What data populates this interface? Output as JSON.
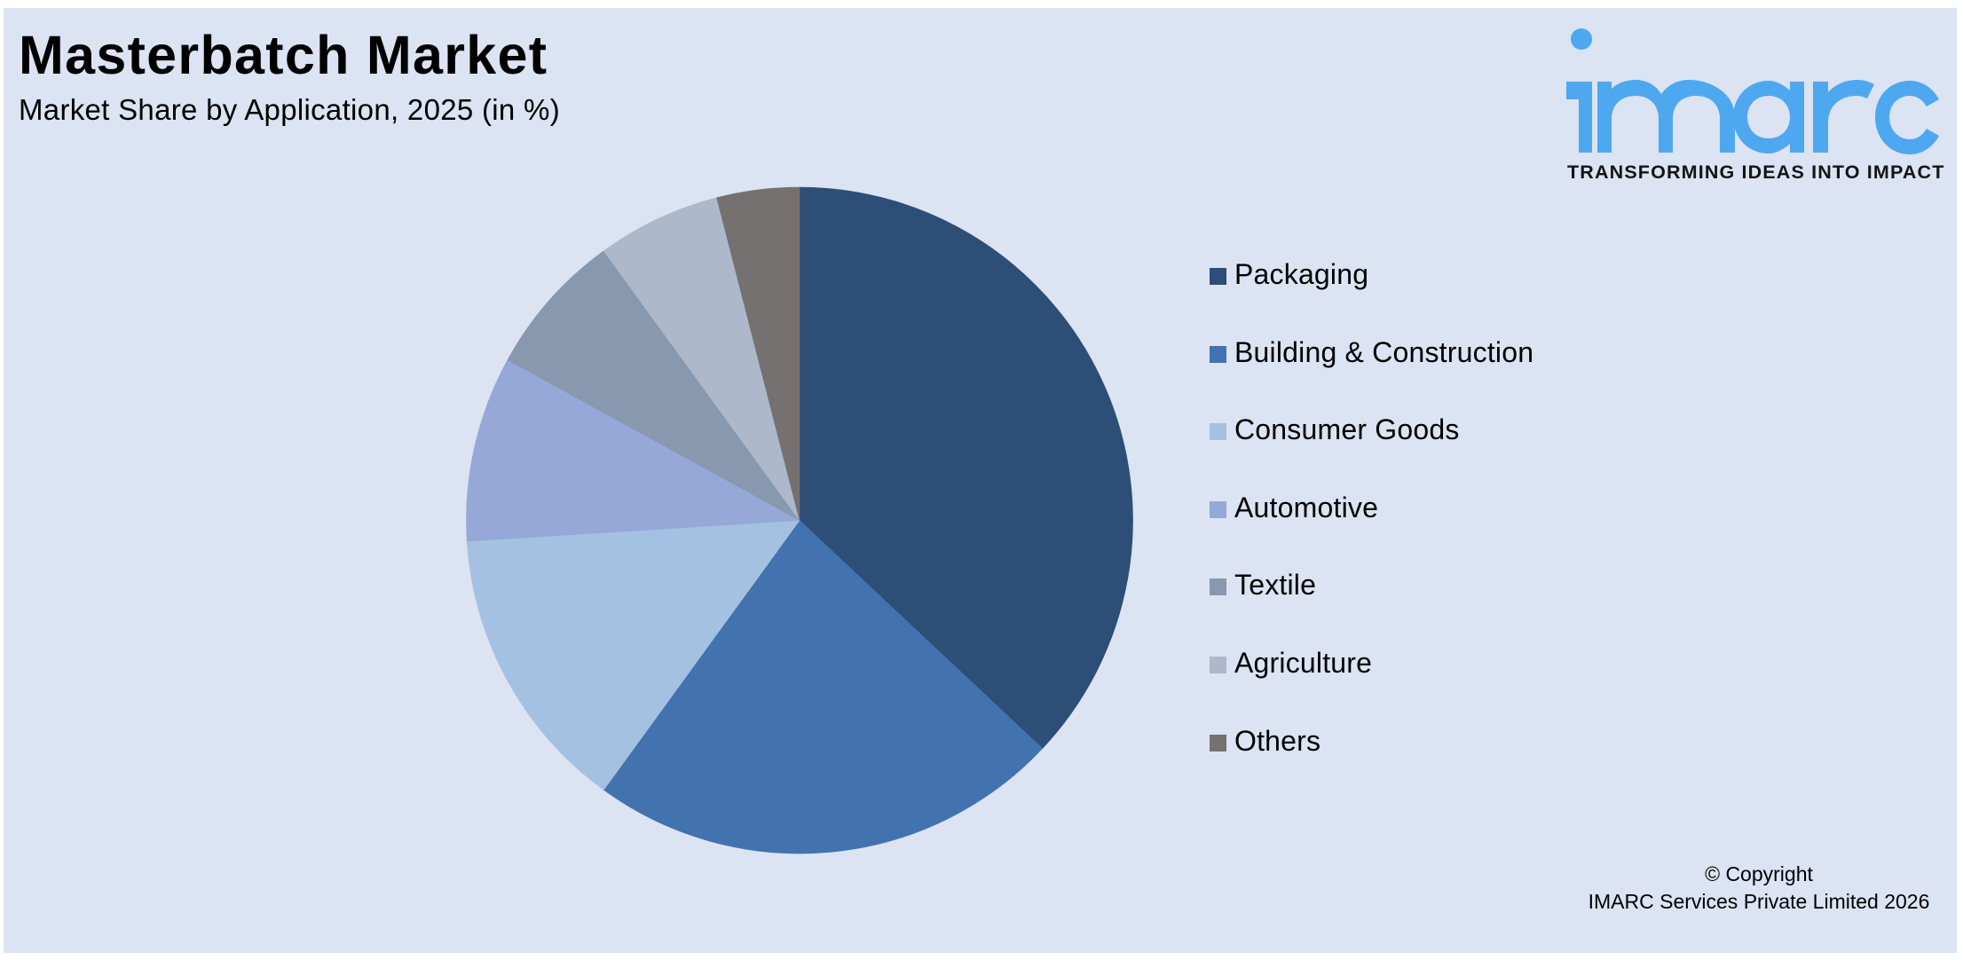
{
  "header": {
    "title": "Masterbatch Market",
    "subtitle": "Market Share by Application, 2025 (in %)"
  },
  "logo": {
    "wordmark": "imarc",
    "tagline": "TRANSFORMING IDEAS INTO IMPACT",
    "color": "#4DA8F0"
  },
  "legend": {
    "items": [
      {
        "label": "Packaging",
        "color": "#2C4E77"
      },
      {
        "label": "Building & Construction",
        "color": "#4273AF"
      },
      {
        "label": "Consumer Goods",
        "color": "#A5C1E1"
      },
      {
        "label": "Automotive",
        "color": "#95A8D8"
      },
      {
        "label": "Textile",
        "color": "#8898AF"
      },
      {
        "label": "Agriculture",
        "color": "#ADB9CA"
      },
      {
        "label": "Others",
        "color": "#767171"
      }
    ]
  },
  "footer": {
    "copyright_line1": "© Copyright",
    "copyright_line2": "IMARC Services Private Limited 2026"
  },
  "colors": {
    "background": "#DCE3F2",
    "border": "#FFFFFF",
    "text": "#000000"
  },
  "chart_data": {
    "type": "pie",
    "title": "Masterbatch Market",
    "subtitle": "Market Share by Application, 2025 (in %)",
    "categories": [
      "Packaging",
      "Building & Construction",
      "Consumer Goods",
      "Automotive",
      "Textile",
      "Agriculture",
      "Others"
    ],
    "values": [
      37,
      23,
      14,
      9,
      7,
      6,
      4
    ],
    "colors": [
      "#2C4E77",
      "#4273AF",
      "#A5C1E1",
      "#95A8D8",
      "#8898AF",
      "#ADB9CA",
      "#767171"
    ],
    "start_angle_deg": 0,
    "direction": "clockwise",
    "data_labels": false,
    "legend_position": "right",
    "unit": "%"
  }
}
